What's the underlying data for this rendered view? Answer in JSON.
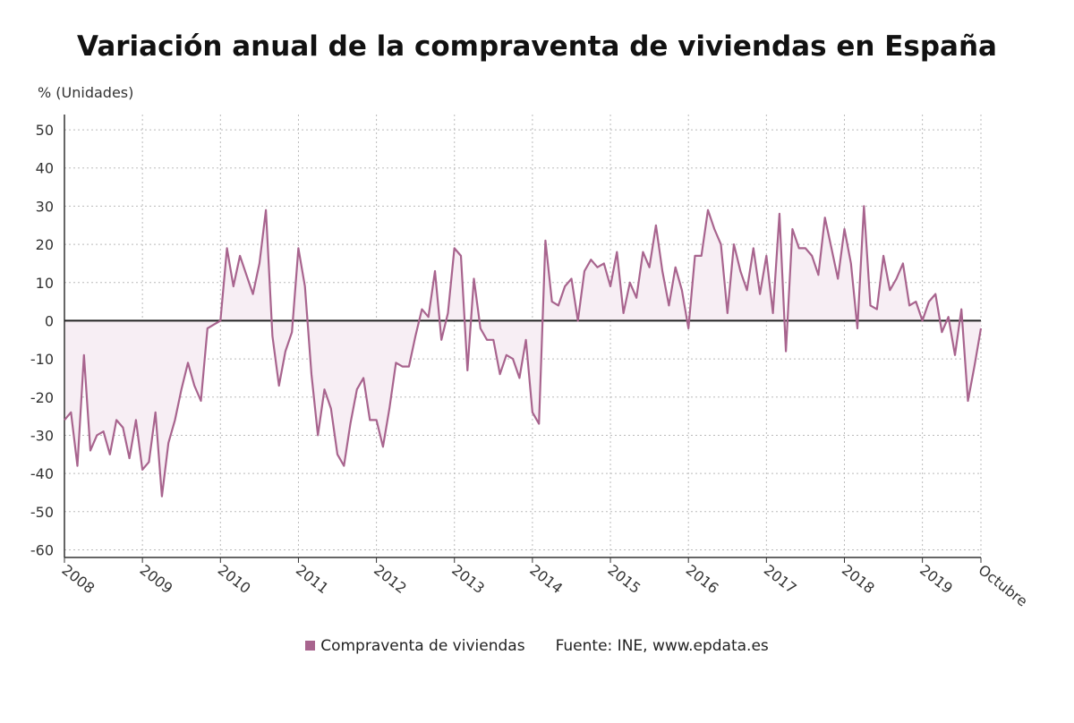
{
  "title": "Variación anual de la compraventa de viviendas en España",
  "legend": {
    "series_name": "Compraventa de viviendas",
    "source": "Fuente: INE, www.epdata.es"
  },
  "chart_data": {
    "type": "line",
    "title": "Variación anual de la compraventa de viviendas en España",
    "ylabel": "% (Unidades)",
    "xlabel": "",
    "ylim": [
      -62,
      54
    ],
    "yticks": [
      50,
      40,
      30,
      20,
      10,
      0,
      -10,
      -20,
      -30,
      -40,
      -50,
      -60
    ],
    "x_tick_labels": [
      "2008",
      "2009",
      "2010",
      "2011",
      "2012",
      "2013",
      "2014",
      "2015",
      "2016",
      "2017",
      "2018",
      "2019",
      "Octubre"
    ],
    "grid": true,
    "legend_position": "bottom",
    "colors": {
      "line": "#a8648e",
      "fill": "#f7eef4",
      "zero_line": "#222222",
      "grid": "#bbbbbb",
      "axis": "#333333"
    },
    "series": [
      {
        "name": "Compraventa de viviendas",
        "start": "2008-01",
        "end": "2019-10",
        "frequency": "monthly",
        "values": [
          -26,
          -24,
          -38,
          -9,
          -34,
          -30,
          -29,
          -35,
          -26,
          -28,
          -36,
          -26,
          -39,
          -37,
          -24,
          -46,
          -32,
          -26,
          -18,
          -11,
          -17,
          -21,
          -2,
          -1,
          0,
          19,
          9,
          17,
          12,
          7,
          15,
          29,
          -4,
          -17,
          -8,
          -3,
          19,
          9,
          -14,
          -30,
          -18,
          -23,
          -35,
          -38,
          -27,
          -18,
          -15,
          -26,
          -26,
          -33,
          -23,
          -11,
          -12,
          -12,
          -4,
          3,
          1,
          13,
          -5,
          2,
          19,
          17,
          -13,
          11,
          -2,
          -5,
          -5,
          -14,
          -9,
          -10,
          -15,
          -5,
          -24,
          -27,
          21,
          5,
          4,
          9,
          11,
          0,
          13,
          16,
          14,
          15,
          9,
          18,
          2,
          10,
          6,
          18,
          14,
          25,
          13,
          4,
          14,
          8,
          -2,
          17,
          17,
          29,
          24,
          20,
          2,
          20,
          13,
          8,
          19,
          7,
          17,
          2,
          28,
          -8,
          24,
          19,
          19,
          17,
          12,
          27,
          19,
          11,
          24,
          15,
          -2,
          30,
          4,
          3,
          17,
          8,
          11,
          15,
          4,
          5,
          0,
          5,
          7,
          -3,
          1,
          -9,
          3,
          -21,
          -12,
          -2
        ]
      }
    ]
  }
}
